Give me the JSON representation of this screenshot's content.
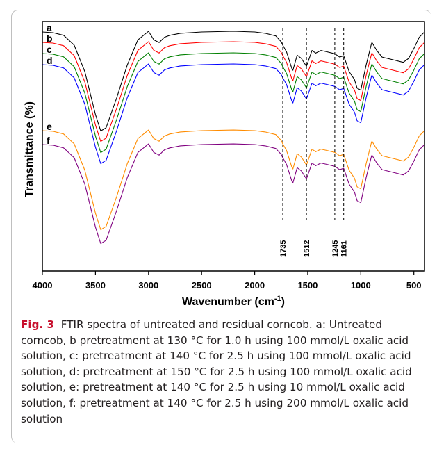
{
  "chart_data": {
    "type": "line",
    "title": "",
    "xlabel": "Wavenumber (cm⁻¹)",
    "xlabel_main": "Wavenumber (cm",
    "xlabel_sup": "-1",
    "xlabel_close": ")",
    "ylabel": "Transmittance (%)",
    "xlim": [
      4000,
      400
    ],
    "x_reversed": true,
    "x_ticks": [
      4000,
      3500,
      3000,
      2500,
      2000,
      1500,
      1000,
      500
    ],
    "y_ticks_shown": false,
    "grid": false,
    "markers": [
      {
        "x": 1735,
        "label": "1735"
      },
      {
        "x": 1512,
        "label": "1512"
      },
      {
        "x": 1245,
        "label": "1245"
      },
      {
        "x": 1161,
        "label": "1161"
      }
    ],
    "series": [
      {
        "name": "a",
        "color": "#000000",
        "offset": 0,
        "x": [
          4000,
          3900,
          3800,
          3700,
          3600,
          3500,
          3450,
          3400,
          3300,
          3200,
          3100,
          3000,
          2950,
          2900,
          2850,
          2800,
          2700,
          2500,
          2200,
          2000,
          1900,
          1800,
          1750,
          1735,
          1700,
          1650,
          1640,
          1600,
          1560,
          1512,
          1460,
          1425,
          1375,
          1320,
          1245,
          1200,
          1161,
          1110,
          1060,
          1035,
          1000,
          950,
          900,
          895,
          850,
          800,
          700,
          600,
          550,
          500,
          450,
          400
        ],
        "y": [
          0,
          1,
          5,
          20,
          60,
          125,
          150,
          145,
          100,
          50,
          12,
          -1,
          12,
          16,
          8,
          5,
          2,
          0,
          -1,
          0,
          2,
          6,
          15,
          20,
          30,
          55,
          58,
          35,
          40,
          52,
          28,
          32,
          28,
          30,
          33,
          38,
          36,
          60,
          72,
          85,
          88,
          50,
          18,
          16,
          28,
          38,
          42,
          46,
          40,
          25,
          8,
          0
        ]
      },
      {
        "name": "b",
        "color": "#ff0000",
        "offset": 0,
        "x": [
          4000,
          3900,
          3800,
          3700,
          3600,
          3500,
          3450,
          3400,
          3300,
          3200,
          3100,
          3000,
          2950,
          2900,
          2850,
          2800,
          2700,
          2500,
          2200,
          2000,
          1900,
          1800,
          1750,
          1735,
          1700,
          1650,
          1640,
          1600,
          1560,
          1512,
          1460,
          1425,
          1375,
          1320,
          1245,
          1200,
          1161,
          1110,
          1060,
          1035,
          1000,
          950,
          900,
          895,
          850,
          800,
          700,
          600,
          550,
          500,
          450,
          400
        ],
        "y": [
          0,
          1,
          5,
          20,
          60,
          125,
          150,
          145,
          100,
          50,
          12,
          -1,
          12,
          16,
          8,
          5,
          2,
          0,
          -1,
          0,
          2,
          6,
          15,
          20,
          30,
          55,
          58,
          35,
          40,
          52,
          28,
          32,
          28,
          30,
          33,
          38,
          36,
          60,
          72,
          85,
          88,
          50,
          18,
          16,
          28,
          38,
          42,
          46,
          40,
          25,
          8,
          0
        ]
      },
      {
        "name": "c",
        "color": "#008000",
        "offset": 0,
        "x": [
          4000,
          3900,
          3800,
          3700,
          3600,
          3500,
          3450,
          3400,
          3300,
          3200,
          3100,
          3000,
          2950,
          2900,
          2850,
          2800,
          2700,
          2500,
          2200,
          2000,
          1900,
          1800,
          1750,
          1735,
          1700,
          1650,
          1640,
          1600,
          1560,
          1512,
          1460,
          1425,
          1375,
          1320,
          1245,
          1200,
          1161,
          1110,
          1060,
          1035,
          1000,
          950,
          900,
          895,
          850,
          800,
          700,
          600,
          550,
          500,
          450,
          400
        ],
        "y": [
          0,
          1,
          5,
          20,
          60,
          125,
          150,
          145,
          100,
          50,
          12,
          -1,
          12,
          16,
          8,
          5,
          2,
          0,
          -1,
          0,
          2,
          6,
          15,
          20,
          30,
          55,
          58,
          35,
          40,
          52,
          28,
          32,
          28,
          30,
          33,
          38,
          36,
          60,
          72,
          85,
          88,
          50,
          18,
          16,
          28,
          38,
          42,
          46,
          40,
          25,
          8,
          0
        ]
      },
      {
        "name": "d",
        "color": "#0000ff",
        "offset": 0,
        "x": [
          4000,
          3900,
          3800,
          3700,
          3600,
          3500,
          3450,
          3400,
          3300,
          3200,
          3100,
          3000,
          2950,
          2900,
          2850,
          2800,
          2700,
          2500,
          2200,
          2000,
          1900,
          1800,
          1750,
          1735,
          1700,
          1650,
          1640,
          1600,
          1560,
          1512,
          1460,
          1425,
          1375,
          1320,
          1245,
          1200,
          1161,
          1110,
          1060,
          1035,
          1000,
          950,
          900,
          895,
          850,
          800,
          700,
          600,
          550,
          500,
          450,
          400
        ],
        "y": [
          0,
          1,
          5,
          20,
          60,
          125,
          150,
          145,
          100,
          50,
          12,
          -1,
          12,
          16,
          8,
          5,
          2,
          0,
          -1,
          0,
          2,
          6,
          15,
          20,
          30,
          55,
          58,
          35,
          40,
          52,
          28,
          32,
          28,
          30,
          33,
          38,
          36,
          60,
          72,
          85,
          88,
          50,
          18,
          16,
          28,
          38,
          42,
          46,
          40,
          25,
          8,
          0
        ]
      },
      {
        "name": "e",
        "color": "#ff8c00",
        "offset": 0,
        "x": [
          4000,
          3900,
          3800,
          3700,
          3600,
          3500,
          3450,
          3400,
          3300,
          3200,
          3100,
          3000,
          2950,
          2900,
          2850,
          2800,
          2700,
          2500,
          2200,
          2000,
          1900,
          1800,
          1750,
          1735,
          1700,
          1650,
          1640,
          1600,
          1560,
          1512,
          1460,
          1425,
          1375,
          1320,
          1245,
          1200,
          1161,
          1110,
          1060,
          1035,
          1000,
          950,
          900,
          895,
          850,
          800,
          700,
          600,
          550,
          500,
          450,
          400
        ],
        "y": [
          0,
          1,
          5,
          20,
          60,
          125,
          150,
          145,
          100,
          50,
          12,
          -1,
          12,
          16,
          8,
          5,
          2,
          0,
          -1,
          0,
          2,
          6,
          15,
          20,
          30,
          55,
          58,
          35,
          40,
          52,
          28,
          32,
          28,
          30,
          33,
          38,
          36,
          60,
          72,
          85,
          88,
          50,
          18,
          16,
          28,
          38,
          42,
          46,
          40,
          25,
          8,
          0
        ]
      },
      {
        "name": "f",
        "color": "#800080",
        "offset": 0,
        "x": [
          4000,
          3900,
          3800,
          3700,
          3600,
          3500,
          3450,
          3400,
          3300,
          3200,
          3100,
          3000,
          2950,
          2900,
          2850,
          2800,
          2700,
          2500,
          2200,
          2000,
          1900,
          1800,
          1750,
          1735,
          1700,
          1650,
          1640,
          1600,
          1560,
          1512,
          1460,
          1425,
          1375,
          1320,
          1245,
          1200,
          1161,
          1110,
          1060,
          1035,
          1000,
          950,
          900,
          895,
          850,
          800,
          700,
          600,
          550,
          500,
          450,
          400
        ],
        "y": [
          0,
          1,
          5,
          20,
          60,
          125,
          150,
          145,
          100,
          50,
          12,
          -1,
          12,
          16,
          8,
          5,
          2,
          0,
          -1,
          0,
          2,
          6,
          15,
          20,
          30,
          55,
          58,
          35,
          40,
          52,
          28,
          32,
          28,
          30,
          33,
          38,
          36,
          60,
          72,
          85,
          88,
          50,
          18,
          16,
          28,
          38,
          42,
          46,
          40,
          25,
          8,
          0
        ]
      }
    ]
  },
  "caption": {
    "label": "Fig. 3",
    "text": "FTIR spectra of untreated and residual corncob. a: Untreated corncob, b pretreatment at 130 °C for 1.0 h using 100 mmol/L oxalic acid solution, c: pretreatment at 140 °C for 2.5 h using 100 mmol/L oxalic acid solution, d: pretreatment at 150 °C for 2.5 h using 100 mmol/L oxalic acid solution, e: pretreatment at 140 °C for 2.5 h using 10 mmol/L oxalic acid solution, f: pretreatment at 140 °C for 2.5 h using 200 mmol/L oxalic acid solution"
  }
}
